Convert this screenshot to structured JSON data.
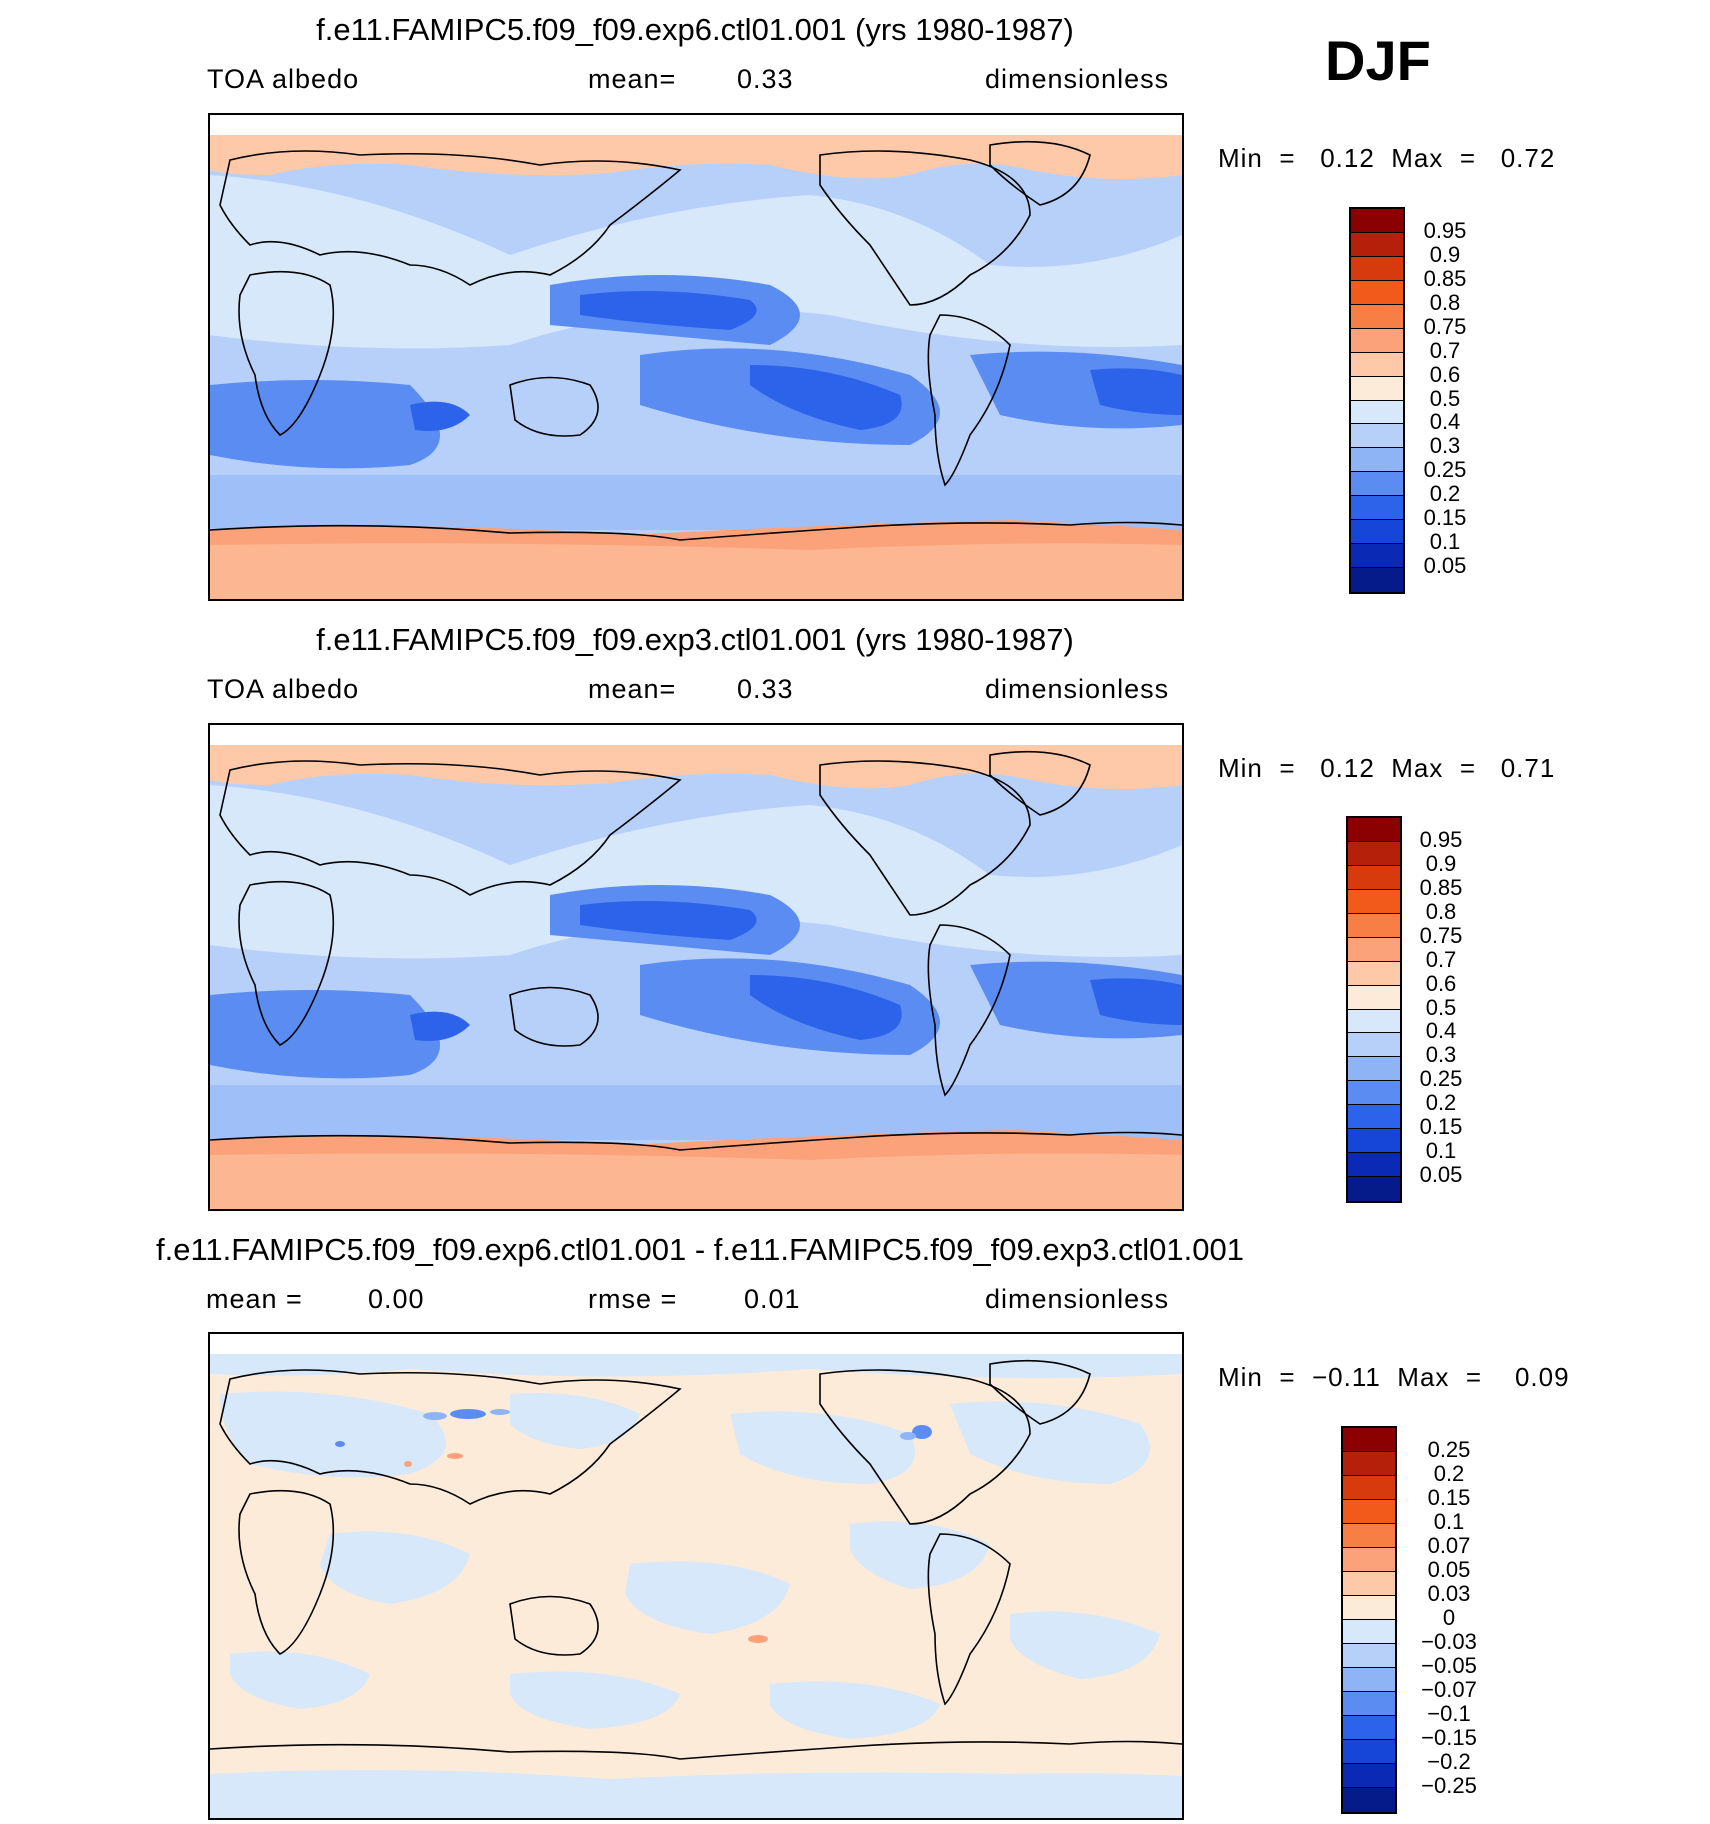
{
  "season": "DJF",
  "panels": [
    {
      "title": "f.e11.FAMIPC5.f09_f09.exp6.ctl01.001 (yrs 1980-1987)",
      "left_label": "TOA  albedo",
      "mid_label": "mean=",
      "mid_value": "0.33",
      "right_label": "dimensionless",
      "min_label": "Min  =",
      "min_value": "0.12",
      "max_label": "Max  =",
      "max_value": "0.72",
      "colorbar": {
        "labels": [
          "0.95",
          "0.9",
          "0.85",
          "0.8",
          "0.75",
          "0.7",
          "0.6",
          "0.5",
          "0.4",
          "0.3",
          "0.25",
          "0.2",
          "0.15",
          "0.1",
          "0.05"
        ],
        "colors": [
          "#8b0000",
          "#b5200a",
          "#d73a0c",
          "#f25a1c",
          "#f77e45",
          "#fba27a",
          "#fdc9a8",
          "#fdebd9",
          "#d7e8fb",
          "#b7d0fa",
          "#8fb4f6",
          "#5a8cf2",
          "#2c63ea",
          "#1546d8",
          "#0a2ab5",
          "#051b8a"
        ]
      }
    },
    {
      "title": "f.e11.FAMIPC5.f09_f09.exp3.ctl01.001 (yrs 1980-1987)",
      "left_label": "TOA  albedo",
      "mid_label": "mean=",
      "mid_value": "0.33",
      "right_label": "dimensionless",
      "min_label": "Min  =",
      "min_value": "0.12",
      "max_label": "Max  =",
      "max_value": "0.71",
      "colorbar": {
        "labels": [
          "0.95",
          "0.9",
          "0.85",
          "0.8",
          "0.75",
          "0.7",
          "0.6",
          "0.5",
          "0.4",
          "0.3",
          "0.25",
          "0.2",
          "0.15",
          "0.1",
          "0.05"
        ],
        "colors": [
          "#8b0000",
          "#b5200a",
          "#d73a0c",
          "#f25a1c",
          "#f77e45",
          "#fba27a",
          "#fdc9a8",
          "#fdebd9",
          "#d7e8fb",
          "#b7d0fa",
          "#8fb4f6",
          "#5a8cf2",
          "#2c63ea",
          "#1546d8",
          "#0a2ab5",
          "#051b8a"
        ]
      }
    },
    {
      "title": "f.e11.FAMIPC5.f09_f09.exp6.ctl01.001 - f.e11.FAMIPC5.f09_f09.exp3.ctl01.001",
      "left_label": "mean  =",
      "left_value": "0.00",
      "mid_label": "rmse  =",
      "mid_value": "0.01",
      "right_label": "dimensionless",
      "min_label": "Min  =",
      "min_value": "−0.11",
      "max_label": "Max  =",
      "max_value": "0.09",
      "colorbar": {
        "labels": [
          "0.25",
          "0.2",
          "0.15",
          "0.1",
          "0.07",
          "0.05",
          "0.03",
          "0",
          "−0.03",
          "−0.05",
          "−0.07",
          "−0.1",
          "−0.15",
          "−0.2",
          "−0.25"
        ],
        "colors": [
          "#8b0000",
          "#b5200a",
          "#d73a0c",
          "#f25a1c",
          "#f77e45",
          "#fba27a",
          "#fdc9a8",
          "#fdebd9",
          "#d7e8fb",
          "#b7d0fa",
          "#8fb4f6",
          "#5a8cf2",
          "#2c63ea",
          "#1546d8",
          "#0a2ab5",
          "#051b8a"
        ]
      }
    }
  ]
}
